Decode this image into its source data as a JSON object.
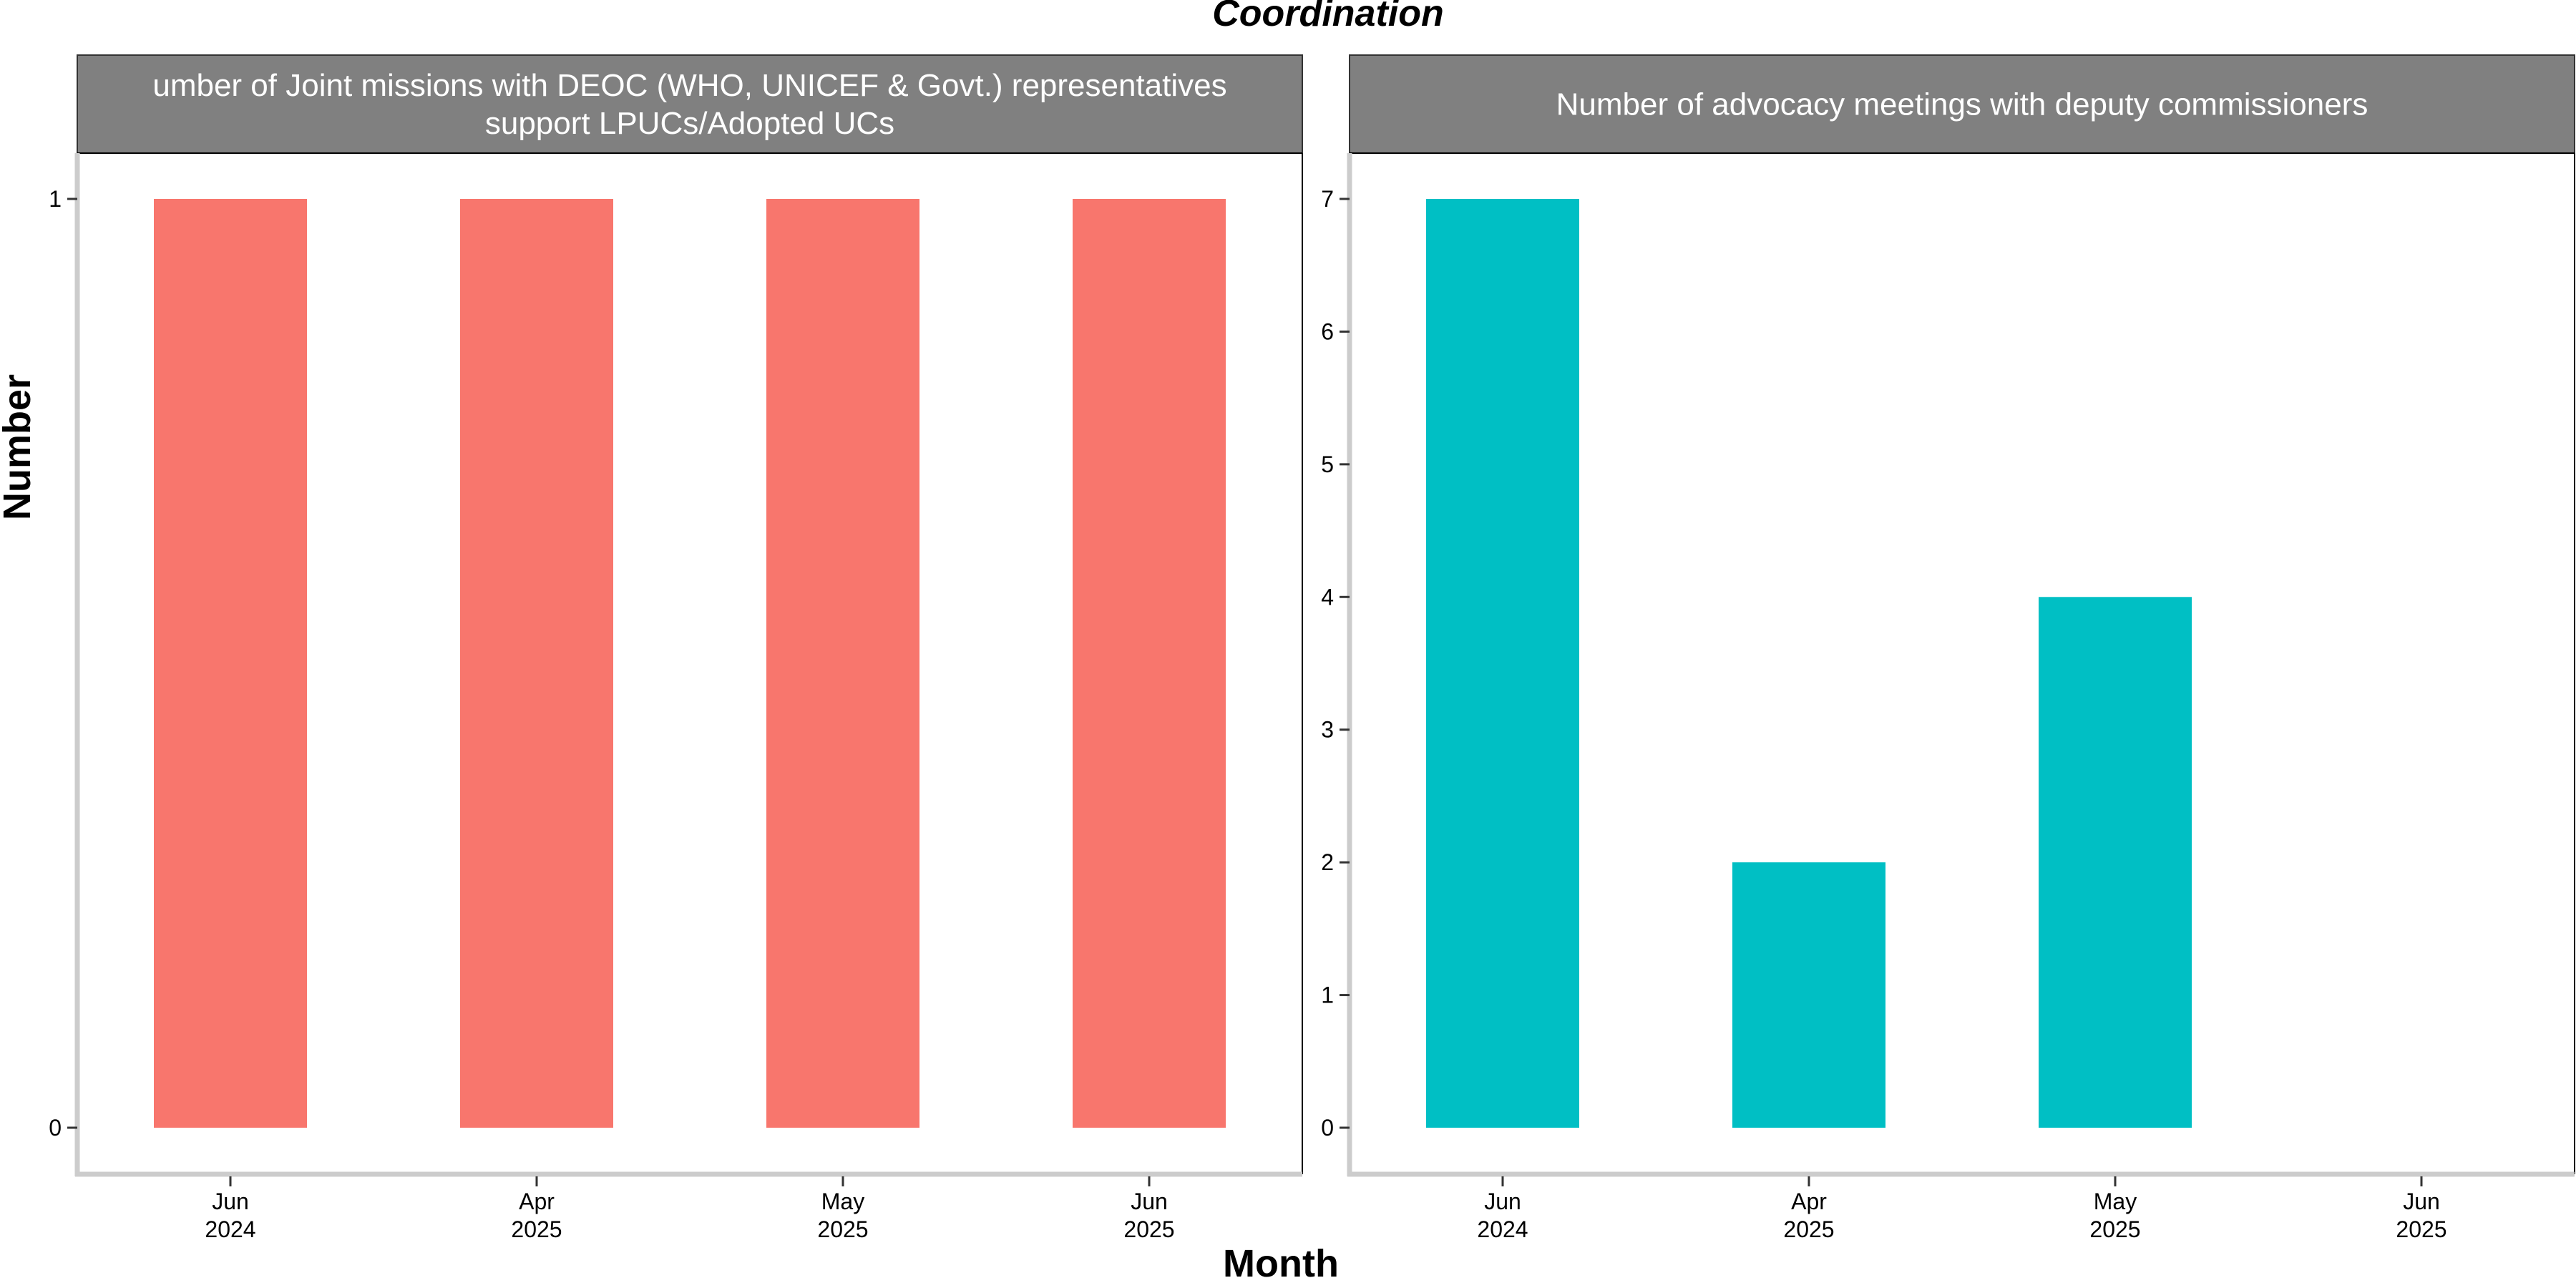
{
  "chart_data": {
    "type": "bar",
    "title": "Coordination",
    "xlabel": "Month",
    "ylabel": "Number",
    "categories": [
      "Jun 2024",
      "Apr 2025",
      "May 2025",
      "Jun 2025"
    ],
    "category_labels": [
      {
        "month": "Jun",
        "year": "2024"
      },
      {
        "month": "Apr",
        "year": "2025"
      },
      {
        "month": "May",
        "year": "2025"
      },
      {
        "month": "Jun",
        "year": "2025"
      }
    ],
    "grid": false,
    "legend": "none",
    "panels": [
      {
        "strip_lines": [
          "umber of Joint missions with DEOC (WHO, UNICEF & Govt.) representatives",
          "support LPUCs/Adopted UCs"
        ],
        "color": "#F8766D",
        "values": [
          1,
          1,
          1,
          1
        ],
        "ylim": [
          0,
          1
        ],
        "yticks": [
          0,
          1
        ]
      },
      {
        "strip_lines": [
          "Number of advocacy meetings with deputy commissioners"
        ],
        "color": "#00BFC4",
        "values": [
          7,
          2,
          4,
          null
        ],
        "ylim": [
          0,
          7
        ],
        "yticks": [
          0,
          1,
          2,
          3,
          4,
          5,
          6,
          7
        ]
      }
    ]
  }
}
